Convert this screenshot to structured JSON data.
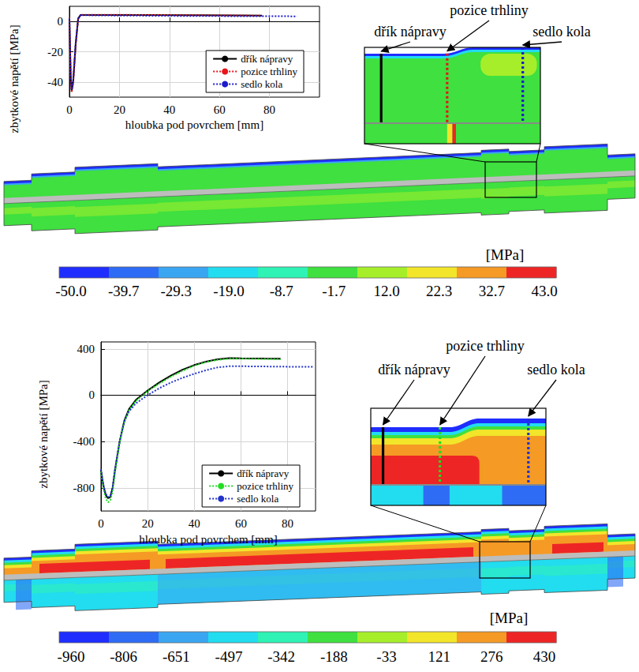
{
  "chart_data": [
    {
      "type": "line",
      "ylabel": "zbytkové napětí [MPa]",
      "xlabel": "hloubka pod povrchem [mm]",
      "xlim": [
        0,
        100
      ],
      "xticks": [
        0,
        20,
        40,
        60,
        80
      ],
      "ylim": [
        -50,
        10
      ],
      "yticks": [
        -40,
        -20,
        0
      ],
      "grid": true,
      "legend": "lower right",
      "series": [
        {
          "name": "dřík nápravy",
          "color": "#000000",
          "line_style": "solid",
          "x": [
            0,
            0.5,
            0.9,
            1.5,
            2.5,
            3.5,
            4.5,
            10,
            30,
            50,
            77
          ],
          "values": [
            2,
            -35,
            -46,
            -40,
            -15,
            2,
            4.3,
            4.3,
            4.2,
            4.1,
            3.9
          ]
        },
        {
          "name": "pozice trhliny",
          "color": "#e8141a",
          "line_style": "dotted",
          "x": [
            0,
            0.5,
            0.9,
            1.5,
            2.5,
            3.5,
            4.5,
            10,
            30,
            50,
            77
          ],
          "values": [
            2.5,
            -36,
            -47,
            -41,
            -16,
            1.5,
            4.4,
            4.4,
            4.3,
            4.1,
            3.9
          ]
        },
        {
          "name": "sedlo kola",
          "color": "#1c1ccc",
          "line_style": "dotted",
          "x": [
            0,
            0.5,
            0.9,
            1.5,
            2.5,
            3.5,
            4.5,
            10,
            30,
            50,
            70,
            91
          ],
          "values": [
            2,
            -34,
            -45,
            -39,
            -14,
            2,
            4.2,
            4.0,
            3.8,
            3.6,
            3.5,
            3.4
          ]
        }
      ],
      "colorbar": {
        "label": "[MPa]",
        "ticks": [
          {
            "value": -50,
            "label": "-50.0"
          },
          -39.7,
          -29.3,
          {
            "value": -19,
            "label": "-19.0"
          },
          -8.7,
          -1.7,
          {
            "value": 12,
            "label": "12.0"
          },
          22.3,
          32.7,
          {
            "value": 43,
            "label": "43.0"
          }
        ],
        "colors": [
          "#1f2dff",
          "#2f6cf5",
          "#3aa6f2",
          "#22dcef",
          "#2ff2b5",
          "#3fe03f",
          "#a6ee2a",
          "#f2e52a",
          "#f59a25",
          "#ee2525"
        ]
      }
    },
    {
      "type": "line",
      "ylabel": "zbytkové napětí [MPa]",
      "xlabel": "hloubka pod povrchem [mm]",
      "xlim": [
        0,
        92
      ],
      "xticks": [
        0,
        20,
        40,
        60,
        80
      ],
      "ylim": [
        -1000,
        460
      ],
      "yticks": [
        -800,
        -400,
        0,
        400
      ],
      "grid": true,
      "legend": "lower right",
      "series": [
        {
          "name": "dřík nápravy",
          "color": "#000000",
          "line_style": "solid",
          "x": [
            0,
            1,
            2,
            3,
            4,
            5,
            6,
            8,
            10,
            12,
            15,
            20,
            25,
            30,
            35,
            40,
            45,
            50,
            55,
            60,
            70,
            77
          ],
          "values": [
            -650,
            -780,
            -860,
            -890,
            -880,
            -800,
            -650,
            -400,
            -220,
            -120,
            -40,
            40,
            110,
            170,
            220,
            260,
            290,
            310,
            320,
            318,
            316,
            315
          ]
        },
        {
          "name": "pozice trhliny",
          "color": "#22dd22",
          "line_style": "dotted",
          "x": [
            0,
            1,
            2,
            3,
            4,
            5,
            6,
            8,
            10,
            12,
            15,
            20,
            25,
            30,
            35,
            40,
            45,
            50,
            55,
            60,
            70,
            77
          ],
          "values": [
            -660,
            -800,
            -890,
            -925,
            -910,
            -830,
            -670,
            -410,
            -230,
            -130,
            -50,
            35,
            100,
            160,
            210,
            255,
            285,
            305,
            315,
            315,
            312,
            310
          ]
        },
        {
          "name": "sedlo kola",
          "color": "#2233cc",
          "line_style": "dotted",
          "x": [
            0,
            1,
            2,
            3,
            4,
            5,
            6,
            8,
            10,
            12,
            15,
            20,
            25,
            30,
            35,
            40,
            45,
            50,
            55,
            60,
            70,
            80,
            91
          ],
          "values": [
            -640,
            -770,
            -850,
            -880,
            -870,
            -790,
            -640,
            -400,
            -230,
            -140,
            -70,
            0,
            60,
            110,
            150,
            185,
            215,
            240,
            250,
            250,
            248,
            246,
            245
          ]
        }
      ],
      "colorbar": {
        "label": "[MPa]",
        "ticks": [
          -960,
          -806,
          -651,
          -497,
          -342,
          -188,
          -33,
          121,
          276,
          430
        ],
        "colors": [
          "#1f2dff",
          "#2f6cf5",
          "#3aa6f2",
          "#22dcef",
          "#2ff2b5",
          "#3fe03f",
          "#a6ee2a",
          "#f2e52a",
          "#f59a25",
          "#ee2525"
        ]
      }
    }
  ]
}
